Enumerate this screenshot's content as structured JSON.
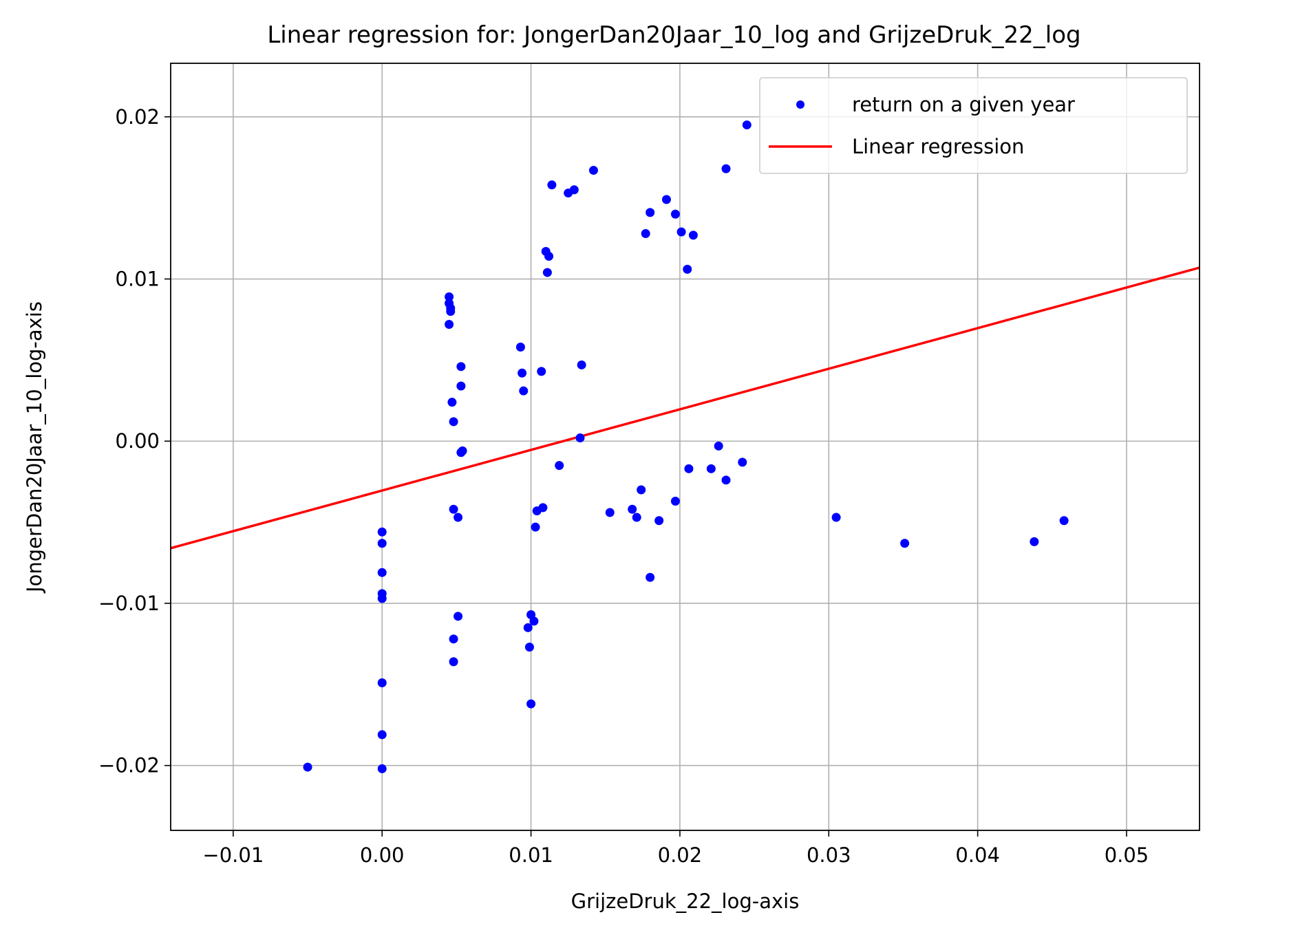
{
  "chart_data": {
    "type": "scatter",
    "title": "Linear regression for: JongerDan20Jaar_10_log and GrijzeDruk_22_log",
    "xlabel": "GrijzeDruk_22_log-axis",
    "ylabel": "JongerDan20Jaar_10_log-axis",
    "xlim": [
      -0.0142,
      0.0549
    ],
    "ylim": [
      -0.024,
      0.0233
    ],
    "x_ticks": [
      -0.01,
      0.0,
      0.01,
      0.02,
      0.03,
      0.04,
      0.05
    ],
    "x_tick_labels": [
      "−0.01",
      "0.00",
      "0.01",
      "0.02",
      "0.03",
      "0.04",
      "0.05"
    ],
    "y_ticks": [
      -0.02,
      -0.01,
      0.0,
      0.01,
      0.02
    ],
    "y_tick_labels": [
      "−0.02",
      "−0.01",
      "0.00",
      "0.01",
      "0.02"
    ],
    "grid": true,
    "legend_position": "top-right",
    "colors": {
      "points": "#0000ff",
      "line": "#ff0000"
    },
    "series": [
      {
        "name": "return on a given year",
        "kind": "scatter",
        "points": [
          [
            -0.005,
            -0.0201
          ],
          [
            0.0,
            -0.0056
          ],
          [
            0.0,
            -0.0063
          ],
          [
            0.0,
            -0.0081
          ],
          [
            0.0,
            -0.0094
          ],
          [
            0.0,
            -0.0097
          ],
          [
            0.0,
            -0.0149
          ],
          [
            0.0,
            -0.0181
          ],
          [
            0.0,
            -0.0202
          ],
          [
            0.0045,
            0.0089
          ],
          [
            0.0045,
            0.0085
          ],
          [
            0.0046,
            0.0082
          ],
          [
            0.0046,
            0.008
          ],
          [
            0.0045,
            0.0072
          ],
          [
            0.0047,
            0.0024
          ],
          [
            0.0048,
            0.0012
          ],
          [
            0.0048,
            -0.0042
          ],
          [
            0.0051,
            -0.0047
          ],
          [
            0.0053,
            0.0046
          ],
          [
            0.0053,
            0.0034
          ],
          [
            0.0054,
            -0.0006
          ],
          [
            0.0053,
            -0.0007
          ],
          [
            0.0051,
            -0.0108
          ],
          [
            0.0048,
            -0.0122
          ],
          [
            0.0048,
            -0.0136
          ],
          [
            0.0093,
            0.0058
          ],
          [
            0.0094,
            0.0042
          ],
          [
            0.0095,
            0.0031
          ],
          [
            0.0098,
            -0.0115
          ],
          [
            0.01,
            -0.0107
          ],
          [
            0.0102,
            -0.0111
          ],
          [
            0.0099,
            -0.0127
          ],
          [
            0.01,
            -0.0162
          ],
          [
            0.0103,
            -0.0053
          ],
          [
            0.0104,
            -0.0043
          ],
          [
            0.0108,
            -0.0041
          ],
          [
            0.0107,
            0.0043
          ],
          [
            0.011,
            0.0117
          ],
          [
            0.0112,
            0.0114
          ],
          [
            0.0111,
            0.0104
          ],
          [
            0.0114,
            0.0158
          ],
          [
            0.0125,
            0.0153
          ],
          [
            0.0129,
            0.0155
          ],
          [
            0.0142,
            0.0167
          ],
          [
            0.0119,
            -0.0015
          ],
          [
            0.0133,
            0.0002
          ],
          [
            0.0134,
            0.0047
          ],
          [
            0.0153,
            -0.0044
          ],
          [
            0.0168,
            -0.0042
          ],
          [
            0.0171,
            -0.0047
          ],
          [
            0.0174,
            -0.003
          ],
          [
            0.0177,
            0.0128
          ],
          [
            0.018,
            0.0141
          ],
          [
            0.018,
            -0.0084
          ],
          [
            0.0186,
            -0.0049
          ],
          [
            0.0191,
            0.0149
          ],
          [
            0.0197,
            0.014
          ],
          [
            0.0197,
            -0.0037
          ],
          [
            0.0201,
            0.0129
          ],
          [
            0.0205,
            0.0106
          ],
          [
            0.0206,
            -0.0017
          ],
          [
            0.0209,
            0.0127
          ],
          [
            0.0221,
            -0.0017
          ],
          [
            0.0226,
            -0.0003
          ],
          [
            0.0231,
            -0.0024
          ],
          [
            0.0231,
            0.0168
          ],
          [
            0.0242,
            -0.0013
          ],
          [
            0.0245,
            0.0195
          ],
          [
            0.0305,
            -0.0047
          ],
          [
            0.0351,
            -0.0063
          ],
          [
            0.0438,
            -0.0062
          ],
          [
            0.0458,
            -0.0049
          ]
        ]
      },
      {
        "name": "Linear regression",
        "kind": "line",
        "points": [
          [
            -0.0142,
            -0.0066
          ],
          [
            0.0549,
            0.0107
          ]
        ]
      }
    ]
  }
}
